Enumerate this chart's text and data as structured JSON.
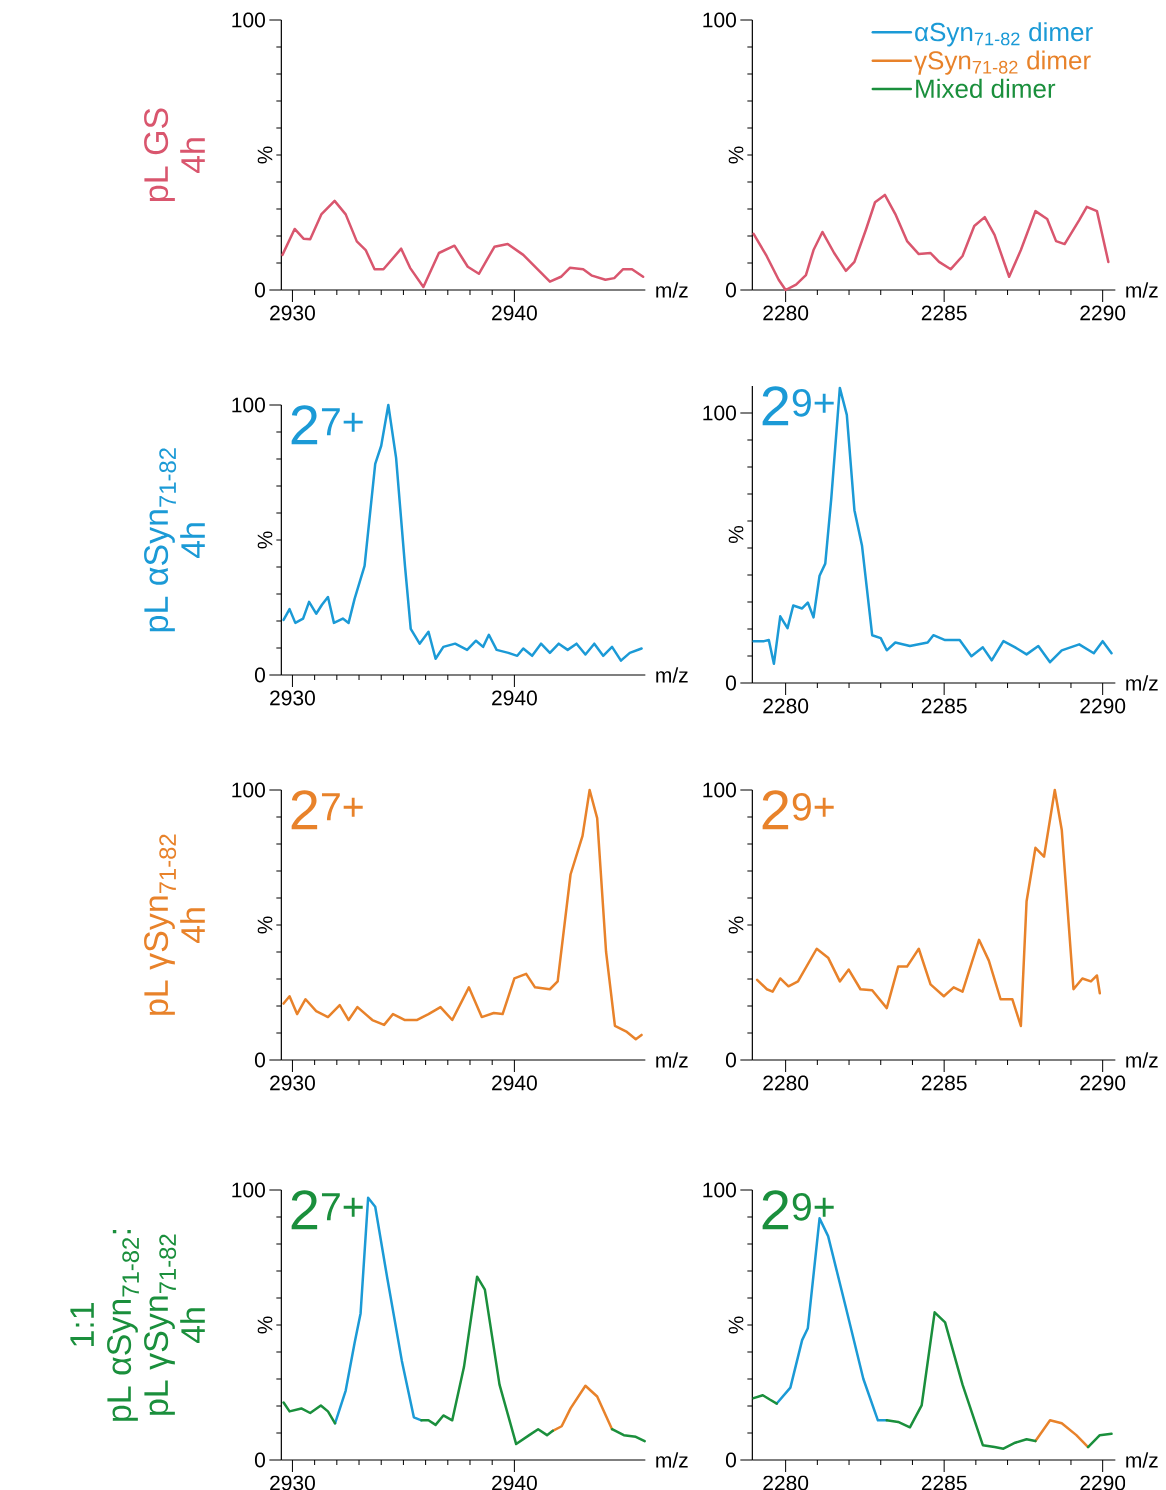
{
  "chart_data": [
    {
      "type": "line",
      "xlabel": "m/z",
      "ylabel": "%",
      "xlim": [
        2929.5,
        2945.9
      ],
      "ylim": [
        0,
        100
      ],
      "xticks": [
        2930,
        2940
      ],
      "yticks": [
        0,
        100
      ],
      "annotations": [
        "pL GS",
        "4h"
      ],
      "series": [
        {
          "color": "#d9566e",
          "x": [
            2929.55,
            2930.1,
            2930.5,
            2930.8,
            2931.3,
            2931.9,
            2932.4,
            2932.9,
            2933.3,
            2933.7,
            2934.1,
            2934.9,
            2935.3,
            2935.9,
            2936.6,
            2937.3,
            2937.9,
            2938.4,
            2939.1,
            2939.7,
            2940.4,
            2941.6,
            2942.1,
            2942.5,
            2943.1,
            2943.5,
            2944.1,
            2944.5,
            2944.9,
            2945.3,
            2945.8
          ],
          "values": [
            13,
            22.6,
            19,
            18.8,
            28,
            33,
            28,
            18,
            14.8,
            7.7,
            7.7,
            15.3,
            8.2,
            1.1,
            13.7,
            16.4,
            8.6,
            6,
            16,
            17,
            13,
            3.1,
            4.9,
            8.2,
            7.7,
            5.3,
            3.8,
            4.4,
            7.7,
            7.7,
            4.9
          ]
        }
      ]
    },
    {
      "type": "line",
      "xlabel": "m/z",
      "ylabel": "%",
      "xlim": [
        2278.95,
        2290.4
      ],
      "ylim": [
        0,
        100
      ],
      "xticks": [
        2280,
        2285,
        2290
      ],
      "yticks": [
        0,
        100
      ],
      "series": [
        {
          "color": "#d9566e",
          "x": [
            2278.99,
            2279.4,
            2279.78,
            2280.0,
            2280.33,
            2280.64,
            2280.88,
            2281.16,
            2281.53,
            2281.9,
            2282.17,
            2282.54,
            2282.82,
            2283.13,
            2283.46,
            2283.83,
            2284.2,
            2284.57,
            2284.84,
            2285.21,
            2285.58,
            2285.95,
            2286.28,
            2286.59,
            2287.05,
            2287.42,
            2287.88,
            2288.25,
            2288.53,
            2288.8,
            2289.26,
            2289.5,
            2289.82,
            2290.18
          ],
          "values": [
            20.8,
            12.6,
            3.8,
            0,
            2,
            5.5,
            14.8,
            21.5,
            13.7,
            7.1,
            10.4,
            22.6,
            32.5,
            35.2,
            28.1,
            18.1,
            13.3,
            13.7,
            10.4,
            7.7,
            12.6,
            23.7,
            27,
            20.4,
            4.9,
            14.8,
            29.2,
            26.3,
            18.1,
            17,
            25.9,
            30.8,
            29.2,
            10.4
          ]
        }
      ]
    },
    {
      "type": "line",
      "title": "2$^{7+}$",
      "xlabel": "m/z",
      "ylabel": "%",
      "xlim": [
        2929.5,
        2945.9
      ],
      "ylim": [
        0,
        100
      ],
      "xticks": [
        2930,
        2940
      ],
      "yticks": [
        0,
        100
      ],
      "annotations": [
        "pL αSyn$_{71-82}$",
        "4h"
      ],
      "series": [
        {
          "color": "#1b9ad6",
          "x": [
            2929.6,
            2929.87,
            2930.13,
            2930.48,
            2930.75,
            2931.07,
            2931.33,
            2931.6,
            2931.87,
            2932.27,
            2932.53,
            2932.8,
            2933.25,
            2933.73,
            2934.0,
            2934.32,
            2934.67,
            2935.07,
            2935.33,
            2935.73,
            2936.13,
            2936.45,
            2936.8,
            2937.33,
            2937.87,
            2938.27,
            2938.59,
            2938.85,
            2939.2,
            2939.73,
            2940.13,
            2940.4,
            2940.8,
            2941.2,
            2941.6,
            2942.0,
            2942.4,
            2942.8,
            2943.2,
            2943.6,
            2944.0,
            2944.4,
            2944.8,
            2945.2,
            2945.73
          ],
          "values": [
            20.4,
            24.4,
            19.3,
            20.9,
            27.1,
            22.7,
            26,
            28.9,
            19.3,
            20.9,
            19.3,
            28.2,
            40.4,
            78.2,
            84.9,
            100,
            80.4,
            40.4,
            17.1,
            11.6,
            16,
            6,
            10.4,
            11.6,
            9.3,
            12.7,
            10.4,
            14.9,
            9.3,
            8.2,
            7.1,
            9.8,
            7.1,
            11.6,
            8.2,
            11.6,
            9.3,
            11.6,
            7.6,
            11.6,
            7.1,
            10.4,
            5.3,
            8.2,
            9.8
          ]
        }
      ]
    },
    {
      "type": "line",
      "title": "2$^{9+}$",
      "xlabel": "m/z",
      "ylabel": "%",
      "xlim": [
        2278.95,
        2290.4
      ],
      "ylim": [
        0,
        110
      ],
      "xticks": [
        2280,
        2285,
        2290
      ],
      "yticks": [
        0,
        100
      ],
      "series": [
        {
          "color": "#1b9ad6",
          "x": [
            2278.99,
            2279.32,
            2279.47,
            2279.63,
            2279.83,
            2280.06,
            2280.24,
            2280.52,
            2280.7,
            2280.88,
            2281.07,
            2281.25,
            2281.44,
            2281.71,
            2281.93,
            2282.17,
            2282.41,
            2282.73,
            2283.0,
            2283.19,
            2283.46,
            2283.92,
            2284.48,
            2284.66,
            2285.03,
            2285.49,
            2285.86,
            2286.22,
            2286.5,
            2286.87,
            2287.24,
            2287.6,
            2287.97,
            2288.34,
            2288.71,
            2289.26,
            2289.72,
            2290.0,
            2290.28
          ],
          "values": [
            15.5,
            15.5,
            15.9,
            7.1,
            24.7,
            20.3,
            28.7,
            27.6,
            29.8,
            24.3,
            39.7,
            44.2,
            68.4,
            109.3,
            99.3,
            64,
            50.8,
            17.7,
            16.6,
            12.1,
            15,
            13.7,
            15,
            17.7,
            15.9,
            15.9,
            9.9,
            13.2,
            8.4,
            15.5,
            13.2,
            10.6,
            13.7,
            7.7,
            12.1,
            14.3,
            11,
            15.5,
            11
          ]
        }
      ]
    },
    {
      "type": "line",
      "title": "2$^{7+}$",
      "xlabel": "m/z",
      "ylabel": "%",
      "xlim": [
        2929.5,
        2945.9
      ],
      "ylim": [
        0,
        100
      ],
      "xticks": [
        2930,
        2940
      ],
      "yticks": [
        0,
        100
      ],
      "annotations": [
        "pL γSyn$_{71-82}$",
        "4h"
      ],
      "series": [
        {
          "color": "#e8822a",
          "x": [
            2929.6,
            2929.87,
            2930.21,
            2930.59,
            2931.07,
            2931.6,
            2932.13,
            2932.53,
            2932.93,
            2933.6,
            2934.13,
            2934.53,
            2935.07,
            2935.6,
            2936.13,
            2936.67,
            2937.2,
            2937.95,
            2938.53,
            2939.07,
            2939.47,
            2940.0,
            2940.53,
            2940.93,
            2941.6,
            2941.95,
            2942.53,
            2943.07,
            2943.39,
            2943.73,
            2944.13,
            2944.53,
            2945.07,
            2945.47,
            2945.73
          ],
          "values": [
            20.9,
            23.6,
            17,
            22.5,
            18.1,
            15.9,
            20.3,
            14.8,
            19.6,
            14.8,
            13,
            17,
            14.8,
            14.8,
            17,
            19.6,
            14.8,
            26.9,
            15.9,
            17.4,
            17,
            30.2,
            31.9,
            26.9,
            26.2,
            29.1,
            68.7,
            83,
            100,
            89.6,
            40.1,
            12.6,
            10.4,
            7.7,
            9.3
          ]
        }
      ]
    },
    {
      "type": "line",
      "title": "2$^{9+}$",
      "xlabel": "m/z",
      "ylabel": "%",
      "xlim": [
        2278.95,
        2290.4
      ],
      "ylim": [
        0,
        100
      ],
      "xticks": [
        2280,
        2285,
        2290
      ],
      "yticks": [
        0,
        100
      ],
      "series": [
        {
          "color": "#e8822a",
          "x": [
            2279.1,
            2279.41,
            2279.59,
            2279.83,
            2280.09,
            2280.39,
            2280.98,
            2281.34,
            2281.71,
            2281.99,
            2282.36,
            2282.73,
            2283.19,
            2283.55,
            2283.83,
            2284.2,
            2284.57,
            2284.99,
            2285.3,
            2285.58,
            2286.1,
            2286.41,
            2286.78,
            2287.15,
            2287.42,
            2287.6,
            2287.88,
            2288.15,
            2288.49,
            2288.71,
            2289.08,
            2289.36,
            2289.63,
            2289.82,
            2289.91
          ],
          "values": [
            29.7,
            26.2,
            25.3,
            30.2,
            27.3,
            29.1,
            41.2,
            37.9,
            29.1,
            33.5,
            26.2,
            25.8,
            19.2,
            34.6,
            34.6,
            41.2,
            28,
            23.6,
            26.9,
            25.3,
            44.5,
            36.8,
            22.5,
            22.5,
            12.6,
            58.8,
            78.6,
            75.3,
            100,
            85.2,
            26.2,
            30.2,
            29.1,
            31.3,
            24.7
          ]
        }
      ]
    },
    {
      "type": "line",
      "title": "2$^{7+}$",
      "xlabel": "m/z",
      "ylabel": "%",
      "xlim": [
        2929.5,
        2945.9
      ],
      "ylim": [
        0,
        100
      ],
      "xticks": [
        2930,
        2940
      ],
      "yticks": [
        0,
        100
      ],
      "annotations": [
        "1:1",
        "pL αSyn$_{71-82}$:",
        "pL γSyn$_{71-82}$",
        "4h"
      ],
      "series": [
        {
          "color": "#1b9ad6",
          "x": [
            2931.92,
            2932.4,
            2932.8,
            2933.07,
            2933.41,
            2933.73,
            2934.27,
            2934.93,
            2935.47,
            2935.81
          ],
          "values": [
            13.6,
            25.7,
            43.3,
            54.3,
            97.1,
            93.8,
            67.5,
            36.7,
            15.8,
            14.7
          ]
        },
        {
          "color": "#e8822a",
          "x": [
            2941.73,
            2942.13,
            2942.53,
            2943.2,
            2943.73,
            2944.4
          ],
          "values": [
            10.8,
            12.5,
            19.1,
            27.5,
            23.5,
            11.4
          ]
        },
        {
          "color": "#1a8f3c",
          "x": [
            2929.6,
            2929.87,
            2930.4,
            2930.8,
            2931.28,
            2931.6,
            2931.92,
            2933.8,
            2935.81,
            2936.13,
            2936.45,
            2936.8,
            2937.2,
            2937.73,
            2938.32,
            2938.67,
            2939.33,
            2940.08,
            2940.67,
            2941.07,
            2941.47,
            2941.73,
            2943.0,
            2944.4,
            2944.93,
            2945.47,
            2945.87
          ],
          "values": [
            21.3,
            18,
            19.1,
            17.4,
            20.2,
            18,
            13.6,
            null,
            14.7,
            14.7,
            13,
            16.5,
            14.7,
            34.5,
            67.9,
            63.1,
            27.9,
            5.9,
            9.2,
            11.4,
            9.2,
            10.8,
            null,
            11.4,
            9.2,
            8.6,
            7
          ]
        }
      ]
    },
    {
      "type": "line",
      "title": "2$^{9+}$",
      "xlabel": "m/z",
      "ylabel": "%",
      "xlim": [
        2278.95,
        2290.4
      ],
      "ylim": [
        0,
        100
      ],
      "xticks": [
        2280,
        2285,
        2290
      ],
      "yticks": [
        0,
        100
      ],
      "legend": "top right",
      "series": [
        {
          "name": "αSyn$_{71-82}$ dimer",
          "color": "#1b9ad6",
          "x": [
            2279.72,
            2280.15,
            2280.52,
            2280.7,
            2281.07,
            2281.34,
            2281.9,
            2282.45,
            2282.91,
            2283.19
          ],
          "values": [
            20.9,
            26.8,
            44.4,
            48.8,
            89.5,
            82.9,
            56.5,
            30.1,
            14.7,
            14.7
          ]
        },
        {
          "name": "γSyn$_{71-82}$ dimer",
          "color": "#e8822a",
          "x": [
            2287.88,
            2288.34,
            2288.71,
            2289.17,
            2289.54
          ],
          "values": [
            7,
            14.7,
            13.6,
            9.2,
            4.8
          ]
        },
        {
          "name": "Mixed dimer",
          "color": "#1a8f3c",
          "x": [
            2278.99,
            2279.28,
            2279.5,
            2279.72,
            2281.5,
            2283.19,
            2283.55,
            2283.92,
            2284.29,
            2284.7,
            2285.03,
            2285.58,
            2286.22,
            2286.59,
            2286.87,
            2287.24,
            2287.6,
            2287.88,
            2288.7,
            2289.54,
            2289.91,
            2290.28
          ],
          "values": [
            22.9,
            24,
            22.4,
            20.9,
            null,
            14.7,
            14.1,
            12.1,
            20.2,
            54.7,
            51,
            27.9,
            5.5,
            4.8,
            4.2,
            6.4,
            7.7,
            7,
            null,
            4.8,
            9.2,
            9.7
          ]
        }
      ]
    }
  ]
}
